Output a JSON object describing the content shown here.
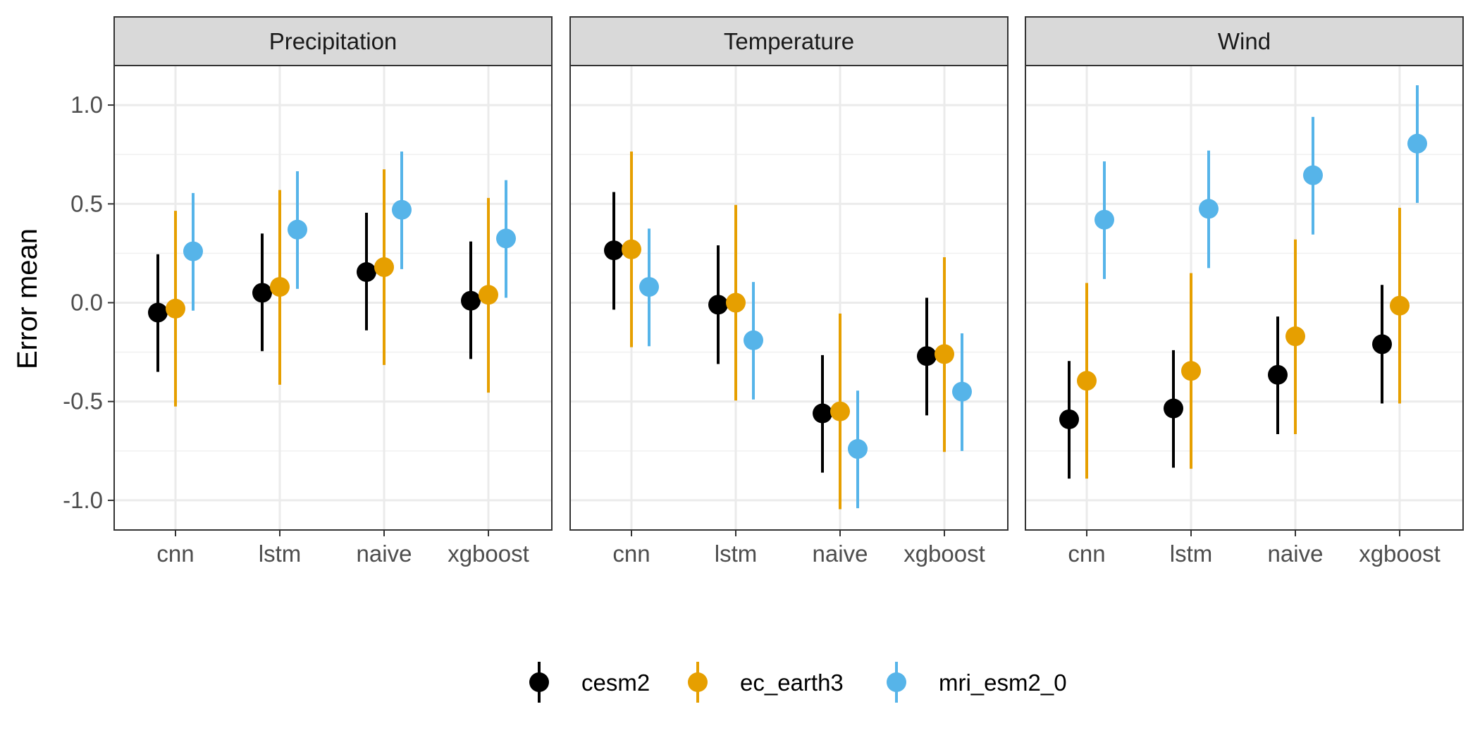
{
  "chart_data": {
    "type": "scatter",
    "subtype": "point-with-error-bars, faceted",
    "ylabel": "Error mean",
    "ylim": [
      -1.15,
      1.2
    ],
    "yticks": [
      1.0,
      0.5,
      0.0,
      -0.5,
      -1.0
    ],
    "ytick_labels": [
      "1.0",
      "0.5",
      "0.0",
      "-0.5",
      "-1.0"
    ],
    "categories": [
      "cnn",
      "lstm",
      "naive",
      "xgboost"
    ],
    "grid": true,
    "legend_position": "bottom",
    "series_colors": {
      "cesm2": "#000000",
      "ec_earth3": "#E69F00",
      "mri_esm2_0": "#56B4E9"
    },
    "legend": [
      "cesm2",
      "ec_earth3",
      "mri_esm2_0"
    ],
    "panels": [
      {
        "title": "Precipitation",
        "series": [
          {
            "name": "cesm2",
            "mean": [
              -0.05,
              0.05,
              0.155,
              0.01
            ],
            "lower": [
              -0.35,
              -0.245,
              -0.14,
              -0.285
            ],
            "upper": [
              0.245,
              0.35,
              0.455,
              0.31
            ]
          },
          {
            "name": "ec_earth3",
            "mean": [
              -0.03,
              0.08,
              0.18,
              0.04
            ],
            "lower": [
              -0.525,
              -0.415,
              -0.315,
              -0.455
            ],
            "upper": [
              0.465,
              0.57,
              0.675,
              0.53
            ]
          },
          {
            "name": "mri_esm2_0",
            "mean": [
              0.26,
              0.37,
              0.47,
              0.325
            ],
            "lower": [
              -0.04,
              0.07,
              0.17,
              0.025
            ],
            "upper": [
              0.555,
              0.665,
              0.765,
              0.62
            ]
          }
        ]
      },
      {
        "title": "Temperature",
        "series": [
          {
            "name": "cesm2",
            "mean": [
              0.265,
              -0.01,
              -0.56,
              -0.27
            ],
            "lower": [
              -0.035,
              -0.31,
              -0.86,
              -0.57
            ],
            "upper": [
              0.56,
              0.29,
              -0.265,
              0.025
            ]
          },
          {
            "name": "ec_earth3",
            "mean": [
              0.27,
              0.0,
              -0.55,
              -0.26
            ],
            "lower": [
              -0.225,
              -0.495,
              -1.045,
              -0.755
            ],
            "upper": [
              0.765,
              0.495,
              -0.055,
              0.23
            ]
          },
          {
            "name": "mri_esm2_0",
            "mean": [
              0.08,
              -0.19,
              -0.74,
              -0.45
            ],
            "lower": [
              -0.22,
              -0.49,
              -1.04,
              -0.75
            ],
            "upper": [
              0.375,
              0.105,
              -0.445,
              -0.155
            ]
          }
        ]
      },
      {
        "title": "Wind",
        "series": [
          {
            "name": "cesm2",
            "mean": [
              -0.59,
              -0.535,
              -0.365,
              -0.21
            ],
            "lower": [
              -0.89,
              -0.835,
              -0.665,
              -0.51
            ],
            "upper": [
              -0.295,
              -0.24,
              -0.07,
              0.09
            ]
          },
          {
            "name": "ec_earth3",
            "mean": [
              -0.395,
              -0.345,
              -0.17,
              -0.015
            ],
            "lower": [
              -0.89,
              -0.84,
              -0.665,
              -0.51
            ],
            "upper": [
              0.1,
              0.15,
              0.32,
              0.48
            ]
          },
          {
            "name": "mri_esm2_0",
            "mean": [
              0.42,
              0.475,
              0.645,
              0.805
            ],
            "lower": [
              0.12,
              0.175,
              0.345,
              0.505
            ],
            "upper": [
              0.715,
              0.77,
              0.94,
              1.1
            ]
          }
        ]
      }
    ]
  }
}
